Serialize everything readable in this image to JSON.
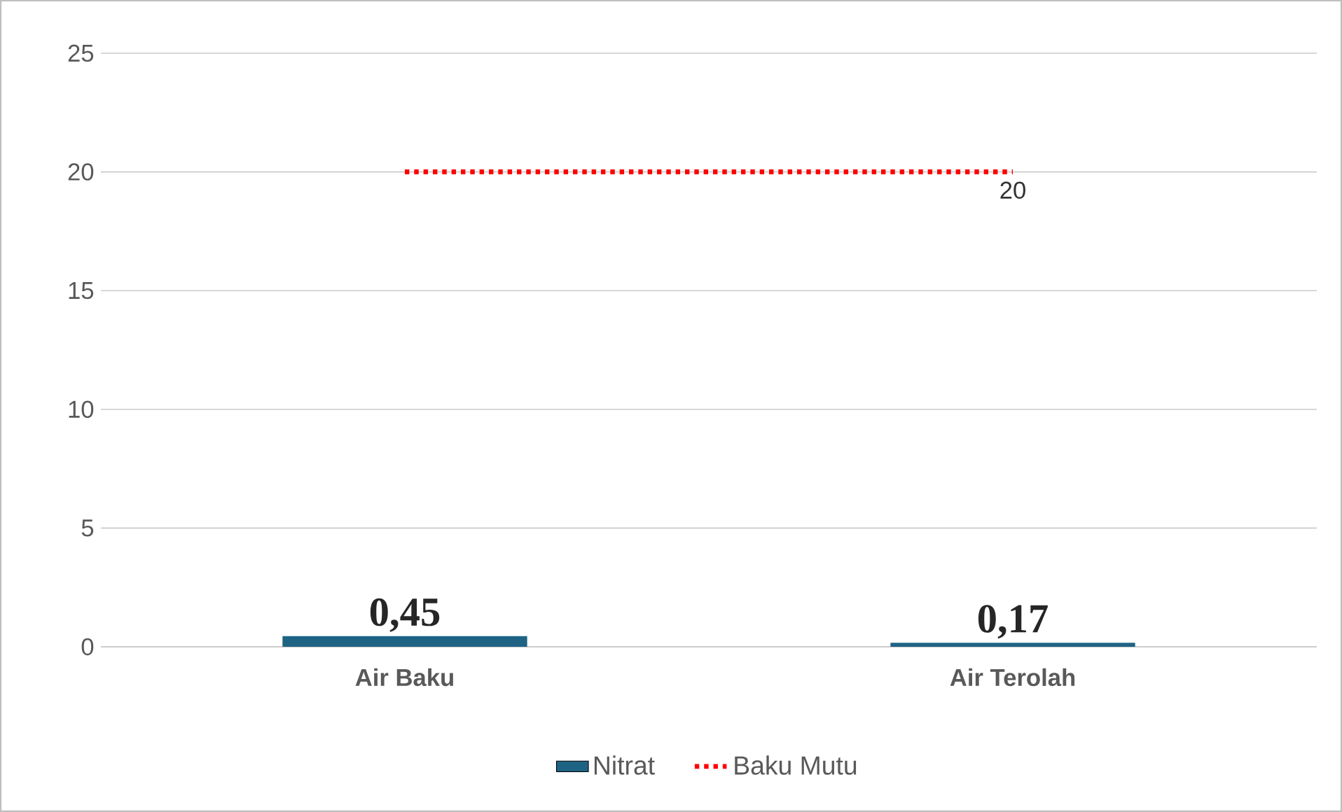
{
  "chart_data": {
    "type": "bar",
    "categories": [
      "Air Baku",
      "Air Terolah"
    ],
    "series": [
      {
        "name": "Nitrat",
        "color": "#1f6384",
        "values": [
          0.45,
          0.17
        ],
        "value_labels": [
          "0,45",
          "0,17"
        ]
      },
      {
        "name": "Baku Mutu",
        "type": "line",
        "color": "#ff0000",
        "line_style": "dotted",
        "values": [
          20,
          20
        ],
        "value_labels": [
          null,
          "20"
        ]
      }
    ],
    "ylim": [
      0,
      25
    ],
    "yticks": [
      0,
      5,
      10,
      15,
      20,
      25
    ],
    "grid": "y",
    "legend": "bottom"
  }
}
